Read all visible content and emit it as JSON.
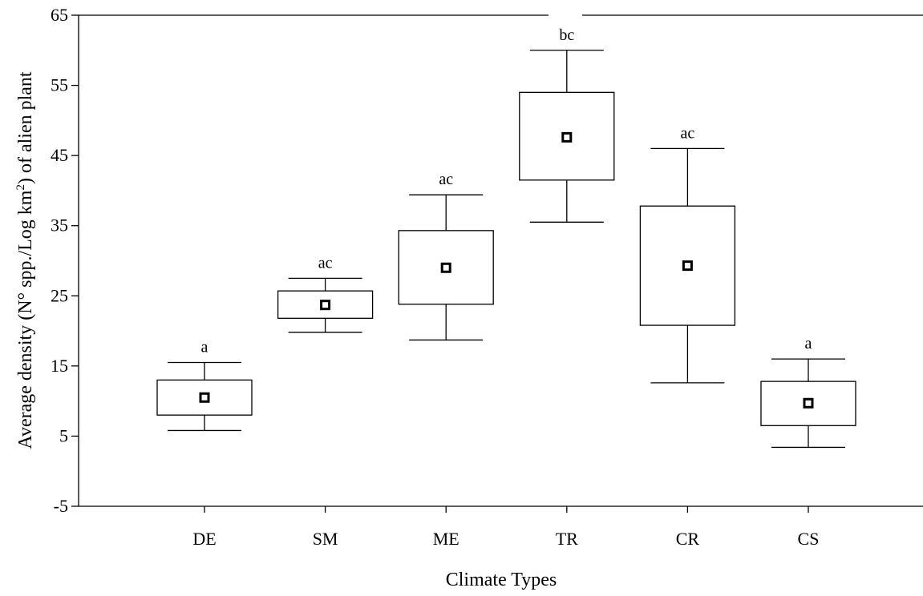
{
  "chart_data": {
    "type": "box",
    "xlabel": "Climate Types",
    "ylabel": {
      "prefix": "Average density (N° spp./Log km",
      "superscript": "2",
      "suffix": ") of alien plant"
    },
    "ylim": [
      -5,
      65
    ],
    "yticks": [
      -5,
      5,
      15,
      25,
      35,
      45,
      55,
      65
    ],
    "categories": [
      "DE",
      "SM",
      "ME",
      "TR",
      "CR",
      "CS"
    ],
    "boxes": [
      {
        "category": "DE",
        "whisker_low": 5.8,
        "q1": 8.0,
        "mean": 10.5,
        "q3": 13.0,
        "whisker_high": 15.5,
        "group": "a"
      },
      {
        "category": "SM",
        "whisker_low": 19.8,
        "q1": 21.8,
        "mean": 23.7,
        "q3": 25.7,
        "whisker_high": 27.5,
        "group": "ac"
      },
      {
        "category": "ME",
        "whisker_low": 18.7,
        "q1": 23.8,
        "mean": 29.0,
        "q3": 34.3,
        "whisker_high": 39.4,
        "group": "ac"
      },
      {
        "category": "TR",
        "whisker_low": 35.5,
        "q1": 41.5,
        "mean": 47.6,
        "q3": 54.0,
        "whisker_high": 60.0,
        "group": "bc"
      },
      {
        "category": "CR",
        "whisker_low": 12.6,
        "q1": 20.8,
        "mean": 29.3,
        "q3": 37.8,
        "whisker_high": 46.0,
        "group": "ac"
      },
      {
        "category": "CS",
        "whisker_low": 3.4,
        "q1": 6.5,
        "mean": 9.7,
        "q3": 12.8,
        "whisker_high": 16.0,
        "group": "a"
      }
    ],
    "grid": false,
    "legend": "none"
  }
}
